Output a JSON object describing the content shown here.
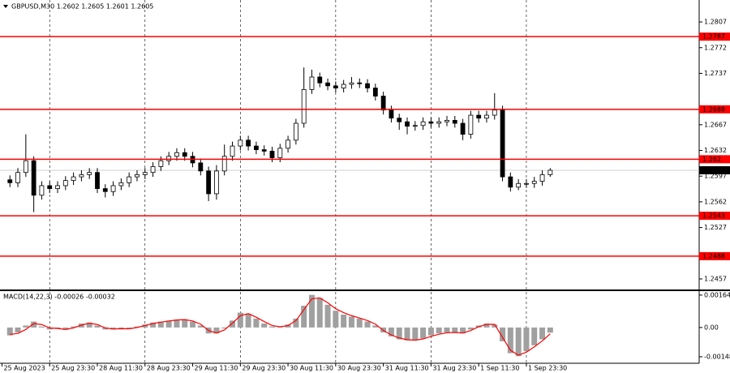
{
  "chart_data": [
    {
      "type": "candlestick",
      "title": "GBPUSD,M30  1.2602 1.2605 1.2601 1.2605",
      "x": [
        4,
        8,
        12,
        16,
        20,
        24,
        28,
        32,
        36,
        40,
        44,
        48,
        52,
        56,
        60,
        64,
        68,
        72,
        76,
        80,
        84,
        88,
        92,
        96,
        100,
        104,
        108,
        112,
        116,
        120,
        124,
        128,
        132,
        136,
        140,
        144,
        148,
        152,
        156,
        160,
        164,
        168,
        172,
        176,
        180,
        184,
        188,
        192,
        196,
        200,
        204,
        208,
        212,
        216,
        220,
        224,
        228,
        232,
        236,
        240,
        244,
        248,
        252,
        256,
        260,
        264,
        268,
        272,
        276
      ],
      "open": [
        1.2592,
        1.2588,
        1.2602,
        1.2618,
        1.2571,
        1.2584,
        1.258,
        1.2584,
        1.2591,
        1.2596,
        1.2599,
        1.2602,
        1.258,
        1.2576,
        1.2584,
        1.2588,
        1.2596,
        1.2599,
        1.2602,
        1.261,
        1.2618,
        1.2624,
        1.2629,
        1.2624,
        1.2615,
        1.2604,
        1.2573,
        1.2604,
        1.2624,
        1.2638,
        1.2646,
        1.2638,
        1.2633,
        1.2631,
        1.2622,
        1.2635,
        1.2646,
        1.2669,
        1.2715,
        1.2732,
        1.2724,
        1.272,
        1.2717,
        1.2722,
        1.2724,
        1.2723,
        1.2717,
        1.2706,
        1.2687,
        1.2676,
        1.2671,
        1.2665,
        1.2666,
        1.2671,
        1.2669,
        1.2671,
        1.2673,
        1.2669,
        1.2654,
        1.268,
        1.2676,
        1.268,
        1.2687,
        1.2596,
        1.2582,
        1.2587,
        1.2587,
        1.259,
        1.2599
      ],
      "high": [
        1.2598,
        1.2608,
        1.2654,
        1.2624,
        1.259,
        1.259,
        1.259,
        1.2597,
        1.2602,
        1.2605,
        1.2608,
        1.2608,
        1.2586,
        1.259,
        1.2594,
        1.2602,
        1.2605,
        1.2608,
        1.2616,
        1.2624,
        1.263,
        1.2635,
        1.2635,
        1.263,
        1.2621,
        1.261,
        1.2612,
        1.264,
        1.2644,
        1.2652,
        1.2652,
        1.2644,
        1.2639,
        1.2637,
        1.2641,
        1.2652,
        1.2675,
        1.2745,
        1.2742,
        1.2738,
        1.273,
        1.2726,
        1.2728,
        1.2732,
        1.273,
        1.2729,
        1.2723,
        1.2712,
        1.2693,
        1.2682,
        1.2677,
        1.2672,
        1.2677,
        1.2677,
        1.2677,
        1.2679,
        1.2679,
        1.2675,
        1.2686,
        1.2686,
        1.2686,
        1.271,
        1.2693,
        1.2602,
        1.2593,
        1.2593,
        1.2596,
        1.2605,
        1.2608
      ],
      "low": [
        1.2582,
        1.2582,
        1.2596,
        1.2548,
        1.2565,
        1.2574,
        1.2574,
        1.2578,
        1.2585,
        1.259,
        1.2593,
        1.2574,
        1.2568,
        1.257,
        1.2578,
        1.2582,
        1.259,
        1.2593,
        1.2596,
        1.2604,
        1.2612,
        1.2618,
        1.2618,
        1.2609,
        1.2598,
        1.2563,
        1.2565,
        1.2598,
        1.2618,
        1.2632,
        1.2632,
        1.2627,
        1.2625,
        1.2616,
        1.2616,
        1.2629,
        1.264,
        1.2663,
        1.2709,
        1.2718,
        1.2714,
        1.2711,
        1.2711,
        1.2716,
        1.2717,
        1.2711,
        1.27,
        1.2681,
        1.267,
        1.266,
        1.2654,
        1.2659,
        1.266,
        1.2663,
        1.2663,
        1.2665,
        1.2663,
        1.2646,
        1.2648,
        1.267,
        1.267,
        1.2674,
        1.259,
        1.2576,
        1.2578,
        1.2581,
        1.2581,
        1.2584,
        1.2596
      ],
      "close": [
        1.2588,
        1.2602,
        1.2618,
        1.2571,
        1.2584,
        1.258,
        1.2584,
        1.2591,
        1.2596,
        1.2599,
        1.2602,
        1.258,
        1.2576,
        1.2584,
        1.2588,
        1.2596,
        1.2599,
        1.2602,
        1.261,
        1.2618,
        1.2624,
        1.2629,
        1.2624,
        1.2615,
        1.2604,
        1.2573,
        1.2604,
        1.2624,
        1.2638,
        1.2646,
        1.2638,
        1.2633,
        1.2631,
        1.2622,
        1.2635,
        1.2646,
        1.2669,
        1.2715,
        1.2732,
        1.2724,
        1.272,
        1.2717,
        1.2722,
        1.2724,
        1.2723,
        1.2717,
        1.2706,
        1.2687,
        1.2676,
        1.2671,
        1.2665,
        1.2666,
        1.2671,
        1.2669,
        1.2671,
        1.2673,
        1.2669,
        1.2654,
        1.268,
        1.2676,
        1.268,
        1.2687,
        1.2596,
        1.2582,
        1.2587,
        1.2587,
        1.259,
        1.2599,
        1.2605
      ],
      "color": "#000000",
      "xlim": [
        -1,
        351
      ],
      "xticks": [
        {
          "value": 0,
          "label": "25 Aug 2023"
        },
        {
          "value": 24,
          "label": "25 Aug 23:30"
        },
        {
          "value": 48,
          "label": "28 Aug 11:30"
        },
        {
          "value": 72,
          "label": "28 Aug 23:30"
        },
        {
          "value": 96,
          "label": "29 Aug 11:30"
        },
        {
          "value": 120,
          "label": "29 Aug 23:30"
        },
        {
          "value": 144,
          "label": "30 Aug 11:30"
        },
        {
          "value": 168,
          "label": "30 Aug 23:30"
        },
        {
          "value": 192,
          "label": "31 Aug 11:30"
        },
        {
          "value": 216,
          "label": "31 Aug 23:30"
        },
        {
          "value": 240,
          "label": "1 Sep 11:30"
        },
        {
          "value": 264,
          "label": "1 Sep 23:30"
        }
      ],
      "ylim": [
        1.24415,
        1.28369
      ],
      "yticks": [
        1.2807,
        1.2772,
        1.2737,
        1.2667,
        1.2632,
        1.2597,
        1.2562,
        1.2527,
        1.2457
      ],
      "levels": [
        1.2787,
        1.2688,
        1.262,
        1.2543,
        1.2488
      ],
      "level_color": "#ff0000",
      "current_price": 1.2605
    },
    {
      "type": "macd",
      "title": "MACD(14,22,3) -0.00026 -0.00032",
      "histogram": {
        "color": "#a0a0a0",
        "values": [
          -0.0004,
          -0.00025,
          0.0001,
          0.0003,
          5e-05,
          -0.0001,
          -5e-05,
          -0.00012,
          5e-05,
          0.0002,
          0.00025,
          0.0001,
          -0.0001,
          -0.0001,
          -5e-05,
          -8e-05,
          5e-05,
          0.00015,
          0.00025,
          0.0003,
          0.00035,
          0.0004,
          0.0004,
          0.0003,
          0.0001,
          -0.0003,
          -0.0003,
          -5e-05,
          0.00035,
          0.00075,
          0.0007,
          0.00045,
          0.0002,
          5e-05,
          2e-05,
          0.00015,
          0.00045,
          0.0011,
          0.00165,
          0.0015,
          0.00115,
          0.00085,
          0.00065,
          0.00055,
          0.00045,
          0.0003,
          0.0001,
          -0.00025,
          -0.00045,
          -0.0006,
          -0.00065,
          -0.00065,
          -0.00055,
          -0.0004,
          -0.0003,
          -0.00025,
          -0.00025,
          -0.0003,
          -0.0001,
          0.0001,
          0.0002,
          0.00015,
          -0.0007,
          -0.0013,
          -0.00145,
          -0.0012,
          -0.0009,
          -0.0006,
          -0.00026
        ]
      },
      "signal": {
        "color": "#ff0000",
        "values": [
          -0.00035,
          -0.0003,
          -0.0001,
          0.0002,
          0.00015,
          -2e-05,
          -5e-05,
          -0.0001,
          -2e-05,
          0.00012,
          0.00022,
          0.00015,
          -2e-05,
          -8e-05,
          -6e-05,
          -7e-05,
          0,
          0.0001,
          0.0002,
          0.00027,
          0.00033,
          0.00038,
          0.0004,
          0.00033,
          0.00017,
          -0.00015,
          -0.00028,
          -0.00012,
          0.00022,
          0.0006,
          0.0007,
          0.00052,
          0.0003,
          0.0001,
          3e-05,
          0.0001,
          0.00035,
          0.0009,
          0.00145,
          0.0015,
          0.00125,
          0.00095,
          0.00075,
          0.0006,
          0.00048,
          0.00035,
          0.00017,
          -0.00015,
          -0.00038,
          -0.00053,
          -0.00062,
          -0.00064,
          -0.00058,
          -0.00045,
          -0.00034,
          -0.00027,
          -0.00025,
          -0.00028,
          -0.00015,
          4e-05,
          0.00016,
          0.00016,
          -0.0005,
          -0.00115,
          -0.0014,
          -0.00125,
          -0.00098,
          -0.00068,
          -0.00032
        ]
      },
      "ylim": [
        -0.00181,
        0.0018
      ],
      "yticks": [
        0.00164,
        {
          "value": 0,
          "label": "0.00"
        },
        -0.00148
      ]
    }
  ]
}
